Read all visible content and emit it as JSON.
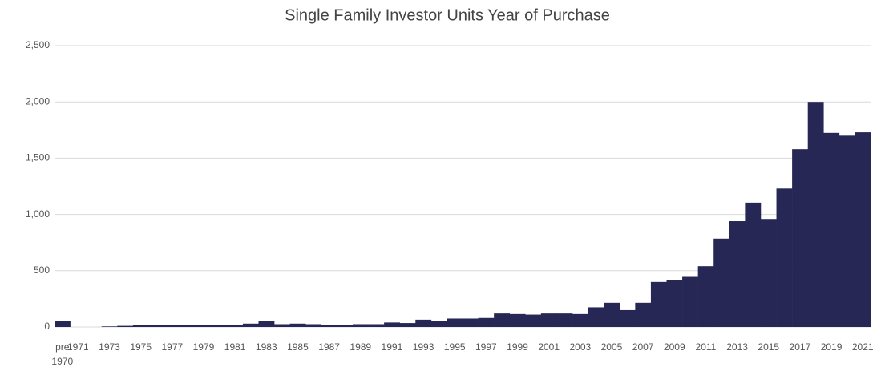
{
  "chart_data": {
    "type": "bar",
    "title": "Single Family Investor Units Year of Purchase",
    "categories": [
      "pre 1970",
      "1971",
      null,
      "1973",
      null,
      "1975",
      null,
      "1977",
      null,
      "1979",
      null,
      "1981",
      null,
      "1983",
      null,
      "1985",
      null,
      "1987",
      null,
      "1989",
      null,
      "1991",
      null,
      "1993",
      null,
      "1995",
      null,
      "1997",
      null,
      "1999",
      null,
      "2001",
      null,
      "2003",
      null,
      "2005",
      null,
      "2007",
      null,
      "2009",
      null,
      "2011",
      null,
      "2013",
      null,
      "2015",
      null,
      "2017",
      null,
      "2019",
      null,
      "2021"
    ],
    "values": [
      50,
      0,
      0,
      5,
      10,
      20,
      20,
      20,
      15,
      20,
      18,
      20,
      30,
      50,
      25,
      30,
      25,
      20,
      20,
      25,
      25,
      40,
      35,
      65,
      50,
      75,
      75,
      80,
      120,
      115,
      110,
      120,
      120,
      115,
      175,
      215,
      150,
      215,
      400,
      420,
      445,
      540,
      785,
      940,
      1105,
      960,
      1230,
      1580,
      2000,
      1725,
      1700,
      1730
    ],
    "color": "#262754",
    "ylim": [
      0,
      2500
    ],
    "yticks": [
      0,
      {
        "value": 500,
        "label": "500"
      },
      {
        "value": 1000,
        "label": "1,000"
      },
      {
        "value": 1500,
        "label": "1,500"
      },
      {
        "value": 2000,
        "label": "2,000"
      },
      {
        "value": 2500,
        "label": "2,500"
      }
    ],
    "grid": true
  }
}
